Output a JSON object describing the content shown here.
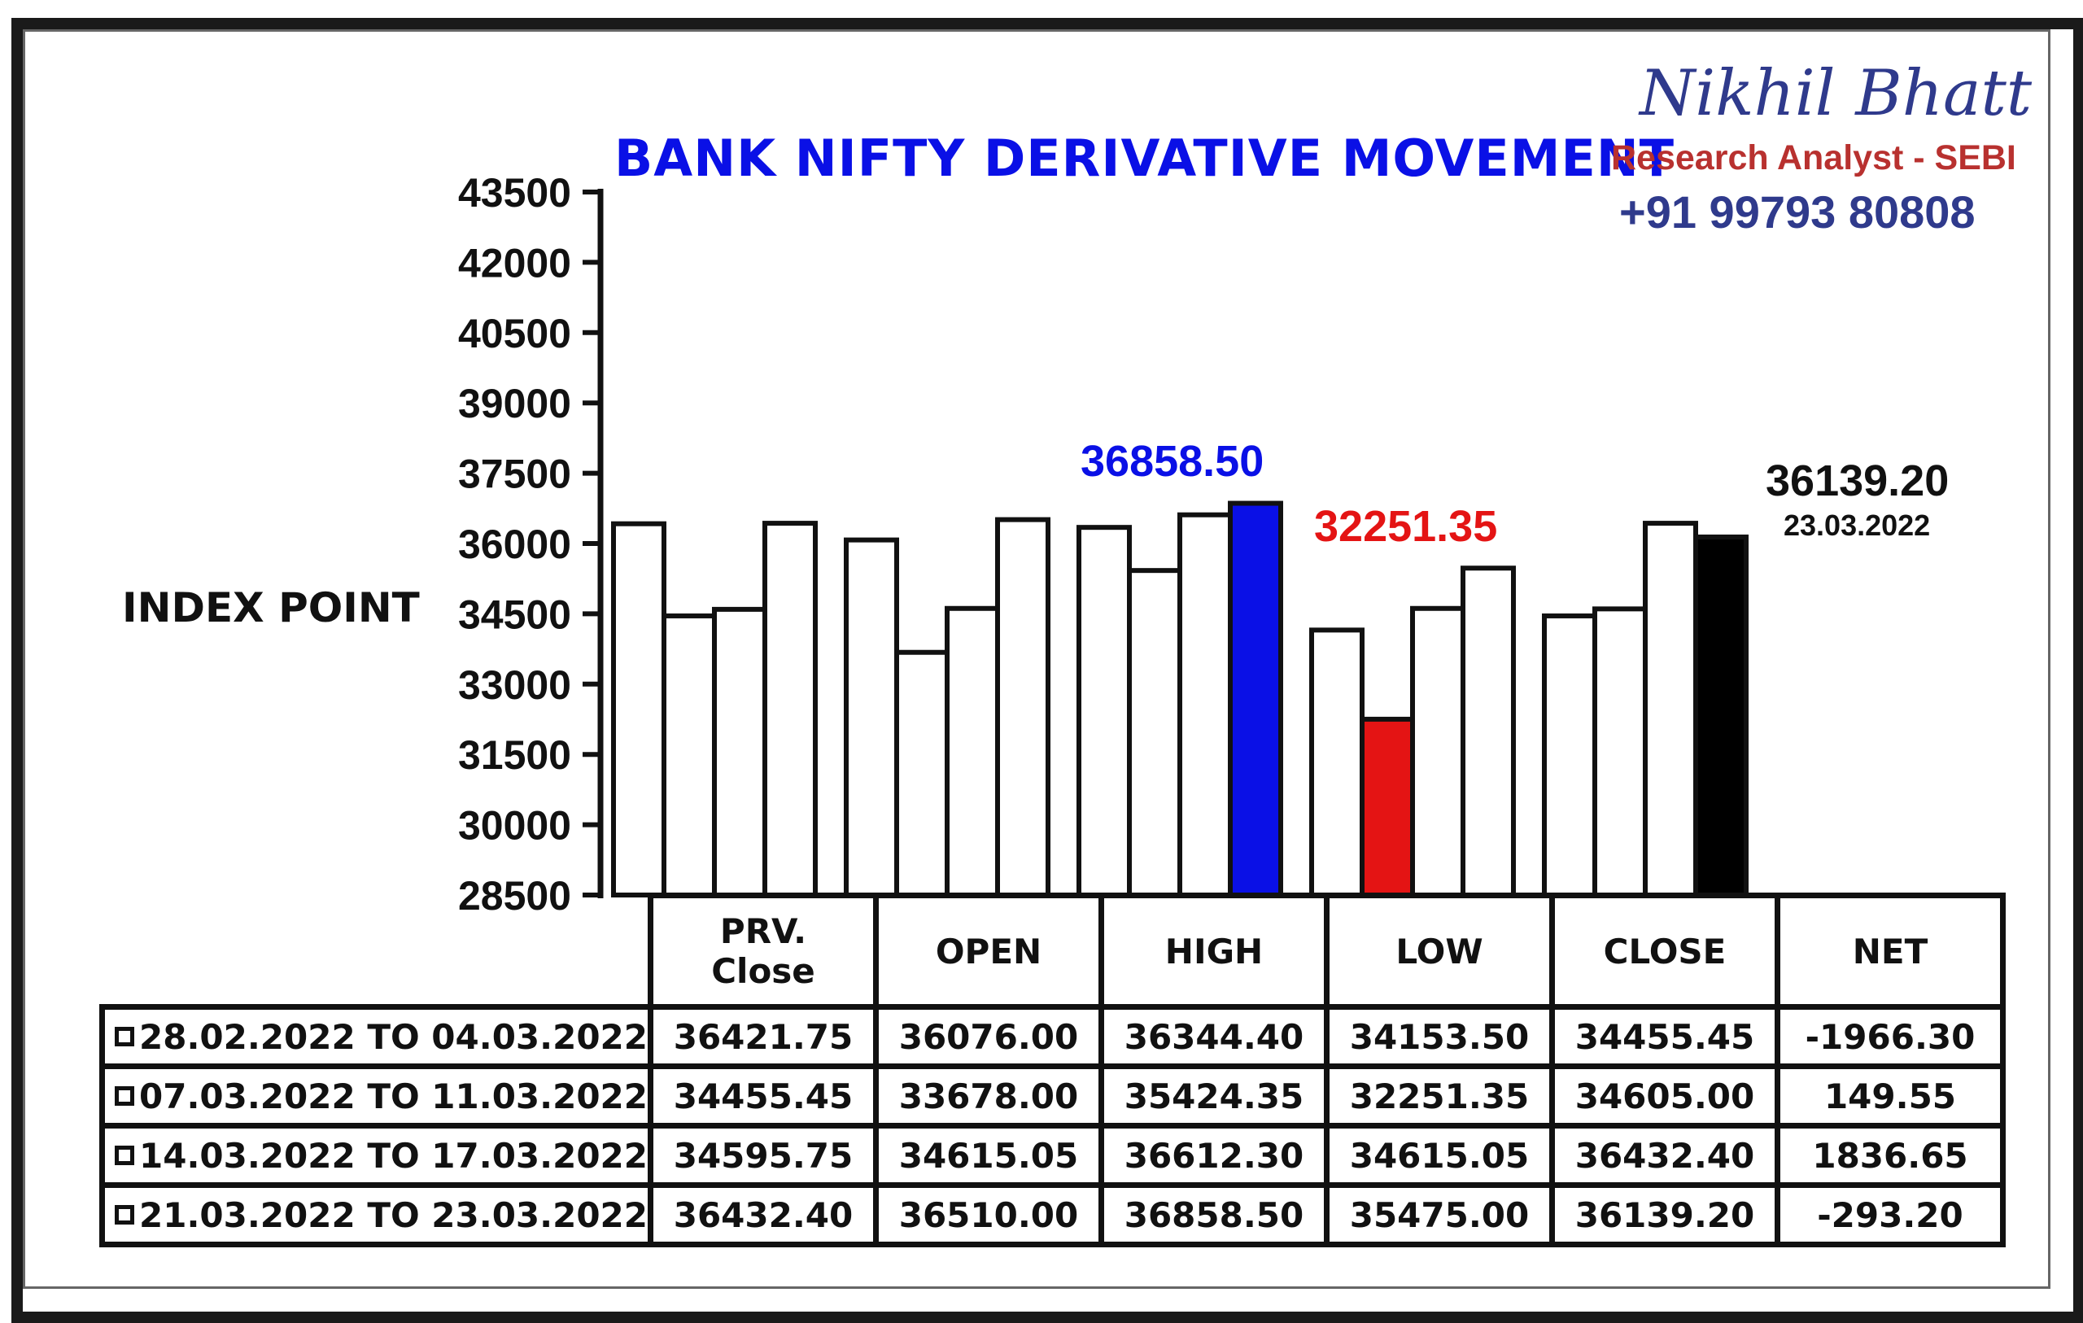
{
  "brand": {
    "name": "Nikhil Bhatt",
    "role": "Research Analyst - SEBI",
    "phone": "+91 99793 80808"
  },
  "colors": {
    "title": "#0a10e6",
    "high_bar": "#0a10e6",
    "low_bar": "#e41414",
    "close_bar": "#000000",
    "bar_default": "#ffffff"
  },
  "chart_data": {
    "type": "bar",
    "title": "BANK NIFTY DERIVATIVE MOVEMENT",
    "ylabel": "INDEX POINT",
    "xlabel": "",
    "ylim": [
      28500,
      43500
    ],
    "yticks": [
      43500,
      42000,
      40500,
      39000,
      37500,
      36000,
      34500,
      33000,
      31500,
      30000,
      28500
    ],
    "categories": [
      "PRV. Close",
      "OPEN",
      "HIGH",
      "LOW",
      "CLOSE"
    ],
    "series": [
      {
        "name": "28.02.2022 TO 04.03.2022",
        "values": [
          36421.75,
          36076.0,
          36344.4,
          34153.5,
          34455.45
        ]
      },
      {
        "name": "07.03.2022 TO 11.03.2022",
        "values": [
          34455.45,
          33678.0,
          35424.35,
          32251.35,
          34605.0
        ]
      },
      {
        "name": "14.03.2022 TO 17.03.2022",
        "values": [
          34595.75,
          34615.05,
          36612.3,
          34615.05,
          36432.4
        ]
      },
      {
        "name": "21.03.2022 TO 23.03.2022",
        "values": [
          36432.4,
          36510.0,
          36858.5,
          35475.0,
          36139.2
        ]
      }
    ],
    "highlights": [
      {
        "category": "HIGH",
        "series": 3,
        "color": "#0a10e6"
      },
      {
        "category": "LOW",
        "series": 1,
        "color": "#e41414"
      },
      {
        "category": "CLOSE",
        "series": 3,
        "color": "#000000"
      }
    ],
    "annotations": {
      "high": "36858.50",
      "low": "32251.35",
      "close": "36139.20",
      "close_date": "23.03.2022"
    },
    "table": {
      "headers": [
        "PRV.\nClose",
        "OPEN",
        "HIGH",
        "LOW",
        "CLOSE",
        "NET"
      ],
      "rows": [
        {
          "label": "28.02.2022 TO 04.03.2022",
          "cells": [
            "36421.75",
            "36076.00",
            "36344.40",
            "34153.50",
            "34455.45",
            "-1966.30"
          ]
        },
        {
          "label": "07.03.2022 TO 11.03.2022",
          "cells": [
            "34455.45",
            "33678.00",
            "35424.35",
            "32251.35",
            "34605.00",
            "149.55"
          ]
        },
        {
          "label": "14.03.2022 TO 17.03.2022",
          "cells": [
            "34595.75",
            "34615.05",
            "36612.30",
            "34615.05",
            "36432.40",
            "1836.65"
          ]
        },
        {
          "label": "21.03.2022 TO 23.03.2022",
          "cells": [
            "36432.40",
            "36510.00",
            "36858.50",
            "35475.00",
            "36139.20",
            "-293.20"
          ]
        }
      ]
    }
  }
}
